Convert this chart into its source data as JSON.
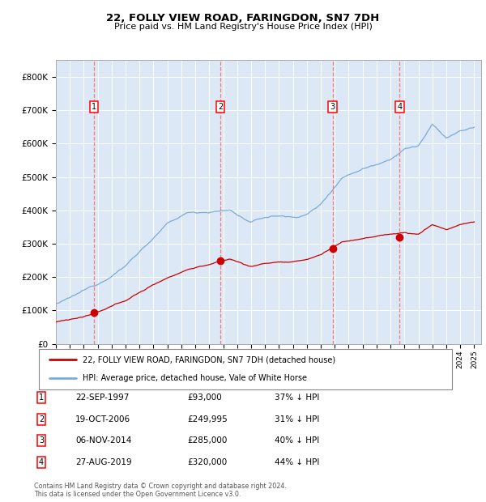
{
  "title1": "22, FOLLY VIEW ROAD, FARINGDON, SN7 7DH",
  "title2": "Price paid vs. HM Land Registry's House Price Index (HPI)",
  "ylim": [
    0,
    850000
  ],
  "yticks": [
    0,
    100000,
    200000,
    300000,
    400000,
    500000,
    600000,
    700000,
    800000
  ],
  "ytick_labels": [
    "£0",
    "£100K",
    "£200K",
    "£300K",
    "£400K",
    "£500K",
    "£600K",
    "£700K",
    "£800K"
  ],
  "plot_bg": "#dce8f5",
  "sale_color": "#cc0000",
  "hpi_color": "#7aabdb",
  "sale_label": "22, FOLLY VIEW ROAD, FARINGDON, SN7 7DH (detached house)",
  "hpi_label": "HPI: Average price, detached house, Vale of White Horse",
  "transactions": [
    {
      "num": 1,
      "date": "22-SEP-1997",
      "price": 93000,
      "x_year": 1997.72
    },
    {
      "num": 2,
      "date": "19-OCT-2006",
      "price": 249995,
      "x_year": 2006.8
    },
    {
      "num": 3,
      "date": "06-NOV-2014",
      "price": 285000,
      "x_year": 2014.85
    },
    {
      "num": 4,
      "date": "27-AUG-2019",
      "price": 320000,
      "x_year": 2019.65
    }
  ],
  "table_rows": [
    {
      "num": 1,
      "date": "22-SEP-1997",
      "price": "£93,000",
      "pct": "37% ↓ HPI"
    },
    {
      "num": 2,
      "date": "19-OCT-2006",
      "price": "£249,995",
      "pct": "31% ↓ HPI"
    },
    {
      "num": 3,
      "date": "06-NOV-2014",
      "price": "£285,000",
      "pct": "40% ↓ HPI"
    },
    {
      "num": 4,
      "date": "27-AUG-2019",
      "price": "£320,000",
      "pct": "44% ↓ HPI"
    }
  ],
  "footer": "Contains HM Land Registry data © Crown copyright and database right 2024.\nThis data is licensed under the Open Government Licence v3.0.",
  "xlim_start": 1995.0,
  "xlim_end": 2025.5
}
